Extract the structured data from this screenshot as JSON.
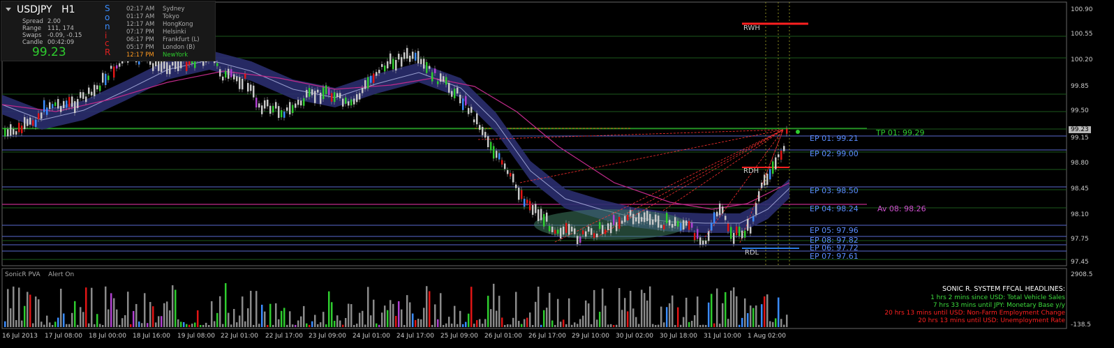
{
  "symbol_panel": {
    "symbol": "USDJPY",
    "timeframe": "H1",
    "rows": [
      {
        "label": "Spread",
        "value": "2.00"
      },
      {
        "label": "Range",
        "value": "111, 174"
      },
      {
        "label": "Swaps",
        "value": "-0.09, -0.15"
      },
      {
        "label": "Candle",
        "value": "00:42:09"
      }
    ],
    "price": "99.23",
    "sonic_letters": [
      "S",
      "o",
      "n",
      "i",
      "c",
      "R"
    ],
    "sessions": [
      {
        "time": "02:17 AM",
        "city": "Sydney"
      },
      {
        "time": "01:17 AM",
        "city": "Tokyo"
      },
      {
        "time": "12:17 AM",
        "city": "HongKong"
      },
      {
        "time": "07:17 PM",
        "city": "Helsinki"
      },
      {
        "time": "06:17 PM",
        "city": "Frankfurt  (L)"
      },
      {
        "time": "05:17 PM",
        "city": "London  (B)"
      },
      {
        "time": "12:17 PM",
        "city": "NewYork"
      }
    ]
  },
  "price_axis": {
    "labels": [
      "100.90",
      "100.55",
      "100.20",
      "99.85",
      "99.50",
      "99.15",
      "98.80",
      "98.45",
      "98.10",
      "97.75",
      "97.45"
    ],
    "current_price_tag": "99.23",
    "indicator_labels": [
      "2908.5",
      "-138.5"
    ]
  },
  "time_axis": {
    "labels": [
      "16 Jul 2013",
      "17 Jul 08:00",
      "18 Jul 00:00",
      "18 Jul 16:00",
      "19 Jul 08:00",
      "22 Jul 01:00",
      "22 Jul 17:00",
      "23 Jul 09:00",
      "24 Jul 01:00",
      "24 Jul 17:00",
      "25 Jul 09:00",
      "26 Jul 01:00",
      "26 Jul 17:00",
      "29 Jul 10:00",
      "30 Jul 02:00",
      "30 Jul 18:00",
      "31 Jul 10:00",
      "1 Aug 02:00"
    ]
  },
  "levels": {
    "rwh": "RWH",
    "rdh": "RDH",
    "rdl": "RDL",
    "tp": "TP 01:  99.29",
    "entries": [
      "EP 01:  99.21",
      "EP 02:  99.00",
      "EP 03:  98.50",
      "EP 04:  98.24",
      "EP 05:  97.96",
      "EP 08:  97.82",
      "EP 06:  97.72",
      "EP 07:  97.61"
    ],
    "average": "Av 08:  98.26"
  },
  "indicator": {
    "name": "SonicR PVA",
    "alert": "Alert On"
  },
  "headlines": {
    "title": "SONIC R. SYSTEM  FFCAL HEADLINES:",
    "items": [
      {
        "text": "1 hrs 2 mins since USD: Total Vehicle Sales",
        "color": "#3ddc3d"
      },
      {
        "text": "7 hrs 33 mins until JPY: Monetary Base y/y",
        "color": "#3ddc3d"
      },
      {
        "text": "20 hrs 13 mins until USD: Non-Farm Employment Change",
        "color": "#ff2020"
      },
      {
        "text": "20 hrs 13 mins until USD: Unemployment Rate",
        "color": "#ff2020"
      }
    ]
  },
  "colors": {
    "background": "#000000",
    "bull_candle": "#2ecc2e",
    "bear_candle": "#e01515",
    "neutral_candle": "#c8c8c8",
    "dragon_band": "#2a2e6e",
    "ema_line": "#c02a8a",
    "level_line": "#5a6ad0",
    "entry_text": "#5a8cff",
    "tp_text": "#2ecc2e",
    "average_text": "#d050d0"
  }
}
